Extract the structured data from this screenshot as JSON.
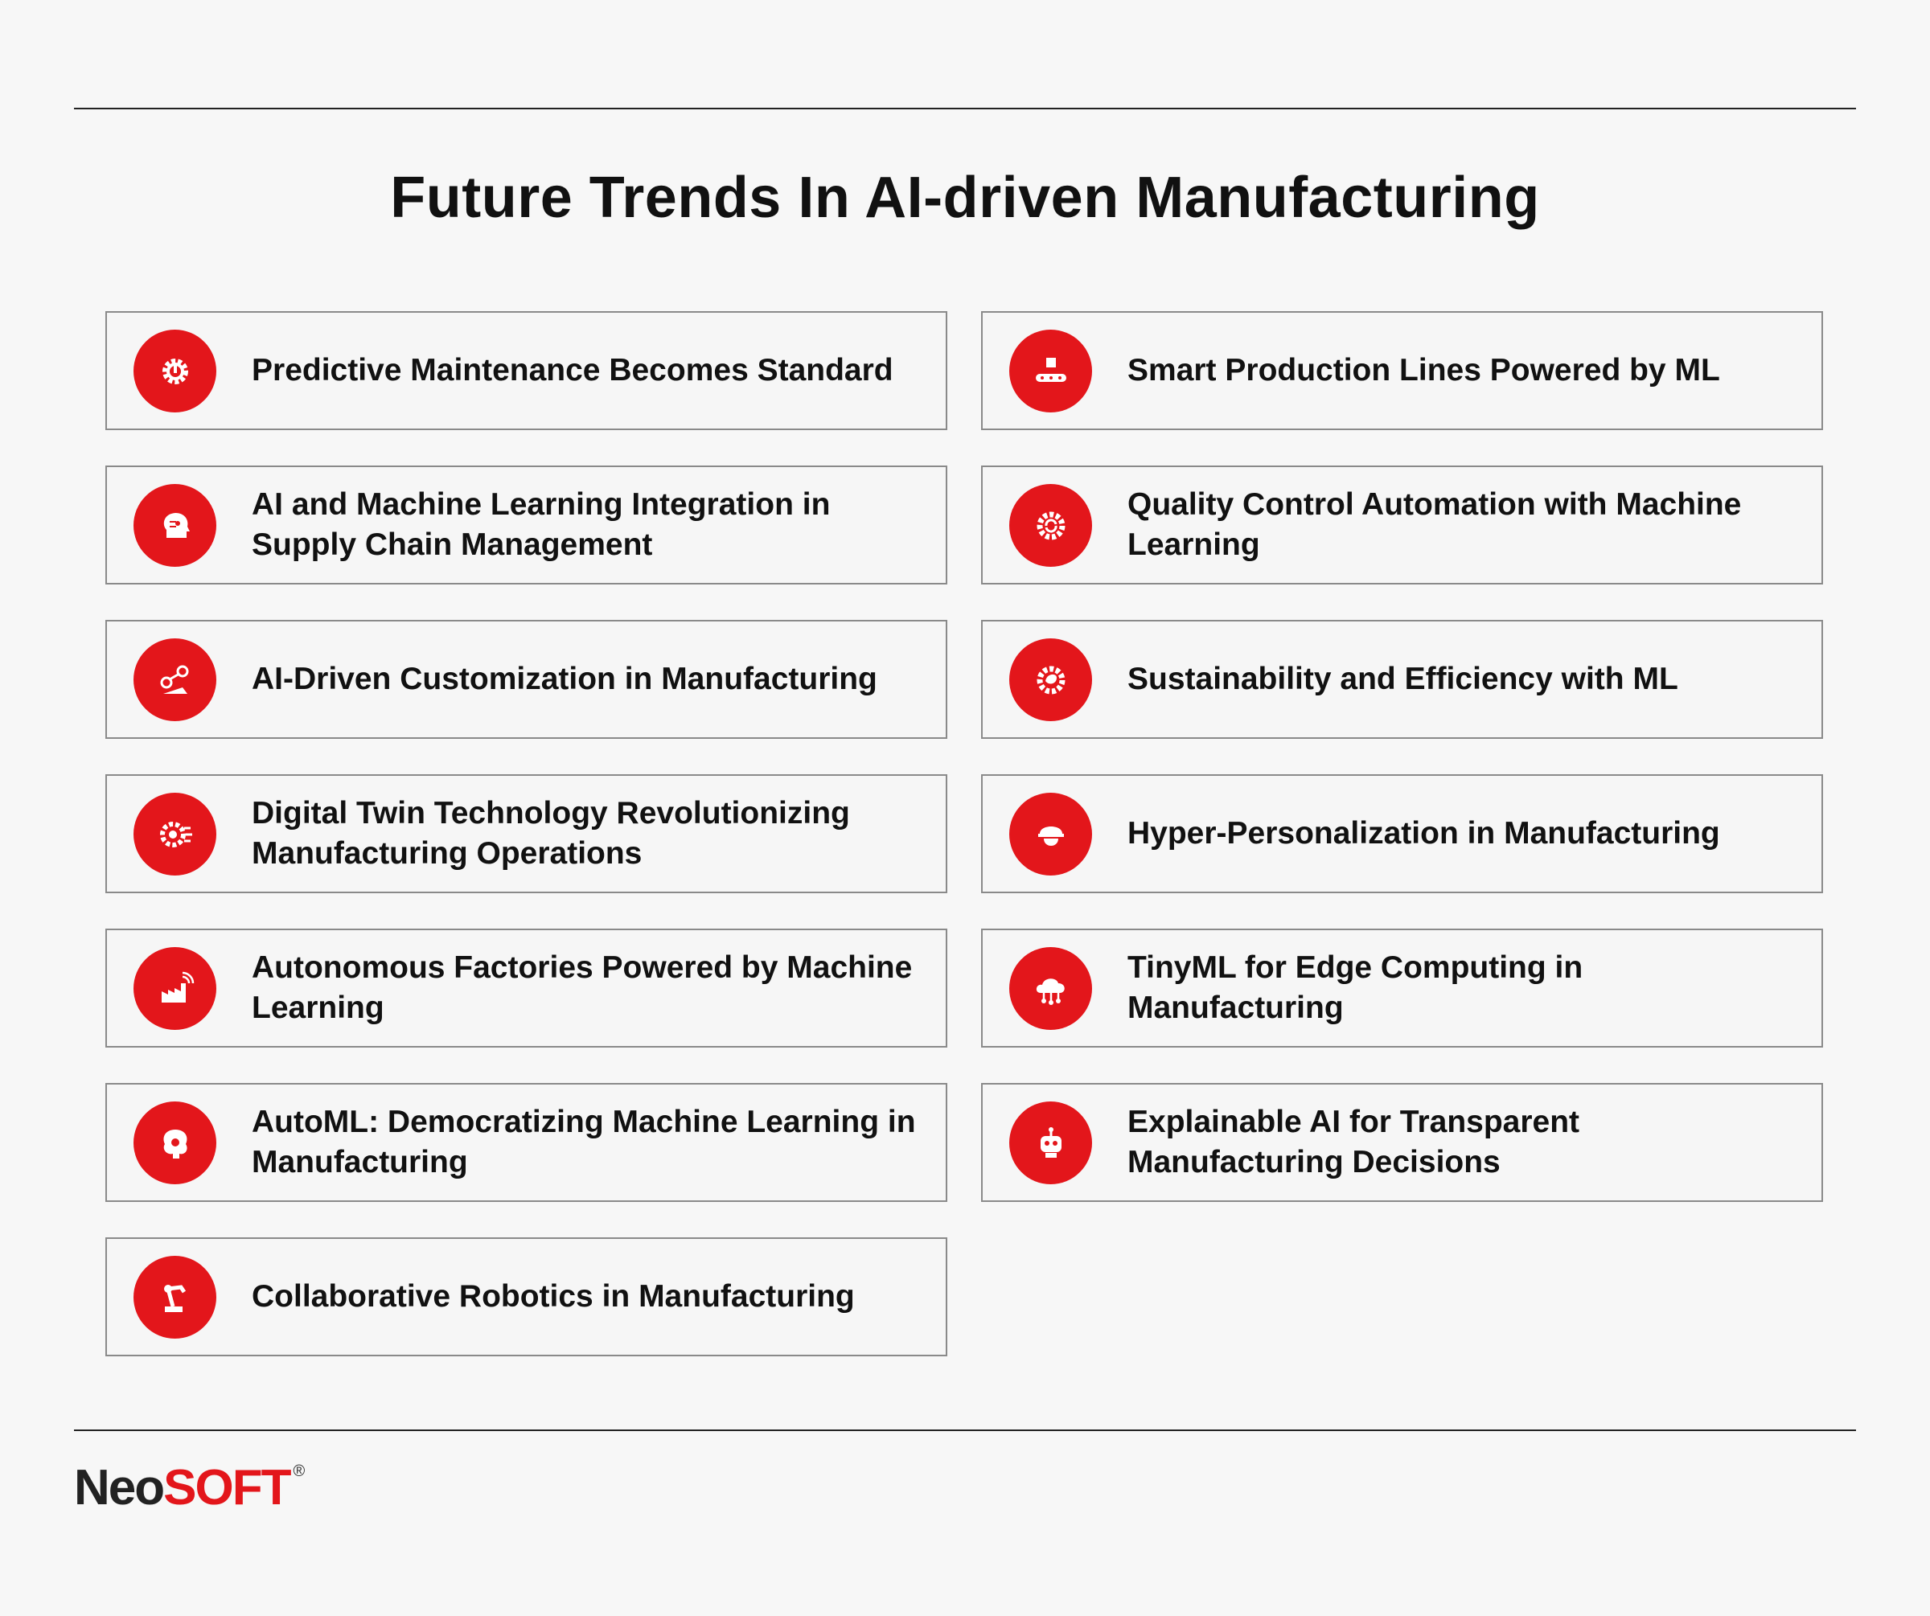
{
  "title": "Future Trends In AI-driven Manufacturing",
  "accent_color": "#e3161b",
  "left_column": [
    {
      "label": "Predictive Maintenance Becomes Standard",
      "icon": "gear-power-icon"
    },
    {
      "label": "AI and Machine Learning Integration in Supply Chain Management",
      "icon": "ai-head-icon"
    },
    {
      "label": "AI-Driven Customization in Manufacturing",
      "icon": "robot-arm-icon"
    },
    {
      "label": "Digital Twin Technology Revolutionizing Manufacturing Operations",
      "icon": "gear-circuit-icon"
    },
    {
      "label": "Autonomous Factories Powered by Machine Learning",
      "icon": "factory-wireless-icon"
    },
    {
      "label": "AutoML: Democratizing Machine Learning in Manufacturing",
      "icon": "brain-gear-icon"
    },
    {
      "label": "Collaborative Robotics in Manufacturing",
      "icon": "robotic-arm-icon"
    }
  ],
  "right_column": [
    {
      "label": "Smart Production Lines Powered by ML",
      "icon": "conveyor-icon"
    },
    {
      "label": "Quality Control Automation with Machine Learning",
      "icon": "gear-refresh-icon"
    },
    {
      "label": "Sustainability and Efficiency with ML",
      "icon": "eco-gear-icon"
    },
    {
      "label": "Hyper-Personalization in Manufacturing",
      "icon": "worker-helmet-icon"
    },
    {
      "label": "TinyML for Edge Computing in Manufacturing",
      "icon": "cloud-network-icon"
    },
    {
      "label": "Explainable AI for Transparent Manufacturing Decisions",
      "icon": "robot-head-icon"
    }
  ],
  "logo": {
    "part1": "Neo",
    "part2": "SOFT",
    "mark": "®"
  }
}
